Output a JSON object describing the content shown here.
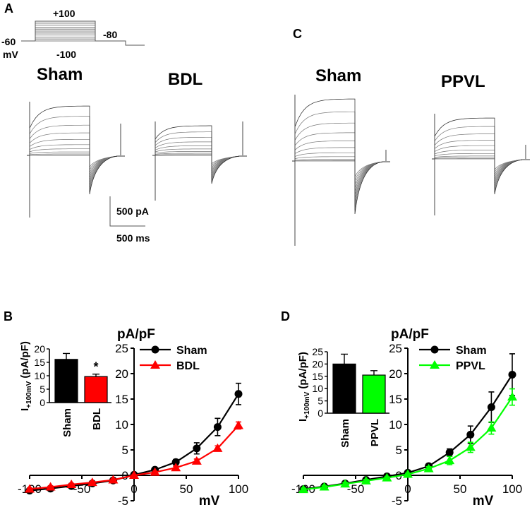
{
  "panels": {
    "A": "A",
    "B": "B",
    "C": "C",
    "D": "D"
  },
  "protocol": {
    "top": "+100",
    "bottom": "-100",
    "holding": "-60",
    "tail": "-80",
    "unit": "mV"
  },
  "traces": {
    "sham_a": "Sham",
    "bdl": "BDL",
    "sham_c": "Sham",
    "ppvl": "PPVL",
    "scale_current": "500 pA",
    "scale_time": "500 ms"
  },
  "colors": {
    "sham": "#000000",
    "bdl": "#ff0000",
    "ppvl": "#00ff00"
  },
  "chart_data": [
    {
      "id": "B",
      "type": "line",
      "title": "",
      "ylabel": "pA/pF",
      "xlabel": "mV",
      "xlim": [
        -100,
        100
      ],
      "ylim": [
        -5,
        25
      ],
      "x_ticks": [
        "-100",
        "-50",
        "0",
        "50",
        "100"
      ],
      "y_ticks": [
        "-5",
        "0",
        "5",
        "10",
        "15",
        "20",
        "25"
      ],
      "legend": "top-right",
      "x": [
        -100,
        -80,
        -60,
        -40,
        -20,
        0,
        20,
        40,
        60,
        80,
        100
      ],
      "series": [
        {
          "name": "Sham",
          "marker": "circle",
          "color": "#000000",
          "values": [
            -3.0,
            -2.6,
            -2.1,
            -1.6,
            -1.0,
            0.1,
            1.1,
            2.6,
            5.3,
            9.5,
            16.0
          ],
          "errors": [
            0.3,
            0.3,
            0.3,
            0.3,
            0.2,
            0.1,
            0.3,
            0.5,
            1.1,
            1.7,
            2.1
          ]
        },
        {
          "name": "BDL",
          "marker": "triangle",
          "color": "#ff0000",
          "values": [
            -2.7,
            -2.3,
            -1.8,
            -1.4,
            -0.9,
            0.0,
            0.6,
            1.5,
            2.8,
            5.3,
            9.8
          ],
          "errors": [
            0.2,
            0.2,
            0.2,
            0.2,
            0.2,
            0.1,
            0.2,
            0.3,
            0.4,
            0.5,
            0.7
          ]
        }
      ],
      "inset": {
        "type": "bar",
        "ylabel_main": "I",
        "ylabel_sub": "+100mV",
        "ylabel_unit": " (pA/pF)",
        "categories": [
          "Sham",
          "BDL"
        ],
        "values": [
          16.1,
          9.7
        ],
        "errors": [
          2.2,
          0.9
        ],
        "colors": [
          "#000000",
          "#ff0000"
        ],
        "ylim": [
          0,
          20
        ],
        "y_ticks": [
          "0",
          "5",
          "10",
          "15",
          "20"
        ],
        "annotation": "*"
      }
    },
    {
      "id": "D",
      "type": "line",
      "title": "",
      "ylabel": "pA/pF",
      "xlabel": "mV",
      "xlim": [
        -100,
        100
      ],
      "ylim": [
        -5,
        25
      ],
      "x_ticks": [
        "-100",
        "-50",
        "0",
        "50",
        "100"
      ],
      "y_ticks": [
        "-5",
        "0",
        "5",
        "10",
        "15",
        "20",
        "25"
      ],
      "legend": "top-right",
      "x": [
        -100,
        -80,
        -60,
        -40,
        -20,
        0,
        20,
        40,
        60,
        80,
        100
      ],
      "series": [
        {
          "name": "Sham",
          "marker": "circle",
          "color": "#000000",
          "values": [
            -2.7,
            -2.2,
            -1.6,
            -0.9,
            -0.2,
            0.5,
            1.8,
            4.5,
            8.0,
            13.4,
            19.8
          ],
          "errors": [
            0.3,
            0.3,
            0.3,
            0.3,
            0.2,
            0.2,
            0.4,
            0.7,
            1.7,
            3.0,
            4.1
          ]
        },
        {
          "name": "PPVL",
          "marker": "triangle",
          "color": "#00ff00",
          "values": [
            -2.8,
            -2.3,
            -1.7,
            -1.1,
            -0.5,
            0.2,
            1.3,
            2.9,
            5.5,
            9.3,
            15.4
          ],
          "errors": [
            0.3,
            0.3,
            0.3,
            0.3,
            0.2,
            0.2,
            0.4,
            0.8,
            1.0,
            1.2,
            1.6
          ]
        }
      ],
      "inset": {
        "type": "bar",
        "ylabel_main": "I",
        "ylabel_sub": "+100mV",
        "ylabel_unit": " (pA/pF)",
        "categories": [
          "Sham",
          "PPVL"
        ],
        "values": [
          20.0,
          15.5
        ],
        "errors": [
          4.0,
          1.8
        ],
        "colors": [
          "#000000",
          "#00ff00"
        ],
        "ylim": [
          0,
          25
        ],
        "y_ticks": [
          "0",
          "5",
          "10",
          "15",
          "20",
          "25"
        ],
        "annotation": ""
      }
    }
  ]
}
